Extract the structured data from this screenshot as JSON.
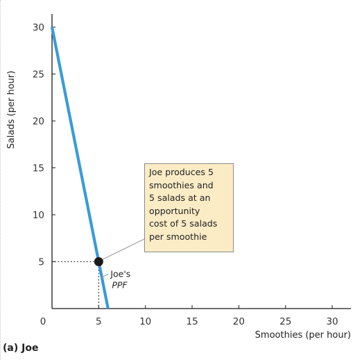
{
  "chart_data": {
    "type": "line",
    "title": "",
    "caption": "(a) Joe",
    "xlabel": "Smoothies (per hour)",
    "ylabel": "Salads (per hour)",
    "xlim": [
      0,
      32
    ],
    "ylim": [
      0,
      32
    ],
    "x_ticks": [
      5,
      10,
      15,
      20,
      25,
      30
    ],
    "y_ticks": [
      5,
      10,
      15,
      20,
      25,
      30
    ],
    "origin_label": "0",
    "grid": false,
    "line_color": "#3a9ad9",
    "series": [
      {
        "name": "Joe's PPF",
        "label_line1": "Joe's",
        "label_line2": "PPF",
        "points": [
          [
            0,
            30
          ],
          [
            6,
            0
          ]
        ]
      }
    ],
    "highlight_point": {
      "x": 5,
      "y": 5
    },
    "annotation": {
      "text": "Joe produces 5\nsmoothies and\n5 salads at an\nopportunity\ncost of 5 salads\nper smoothie",
      "background": "#fcecc6"
    }
  }
}
